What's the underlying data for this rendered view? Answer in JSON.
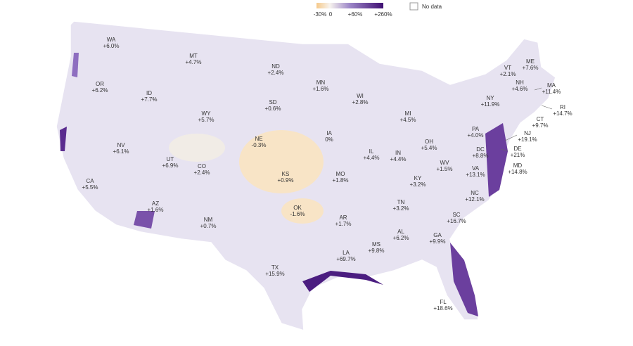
{
  "legend": {
    "labels": [
      "-30%",
      "0",
      "+60%",
      "+260%"
    ],
    "no_data": "No data"
  },
  "states": [
    {
      "abbr": "WA",
      "change": "+6.0%"
    },
    {
      "abbr": "MT",
      "change": "+4.7%"
    },
    {
      "abbr": "ND",
      "change": "+2.4%"
    },
    {
      "abbr": "OR",
      "change": "+6.2%"
    },
    {
      "abbr": "ID",
      "change": "+7.7%"
    },
    {
      "abbr": "MN",
      "change": "+1.6%"
    },
    {
      "abbr": "WI",
      "change": "+2.8%"
    },
    {
      "abbr": "SD",
      "change": "+0.6%"
    },
    {
      "abbr": "WY",
      "change": "+5.7%"
    },
    {
      "abbr": "MI",
      "change": "+4.5%"
    },
    {
      "abbr": "NY",
      "change": "+11.9%"
    },
    {
      "abbr": "VT",
      "change": "+2.1%"
    },
    {
      "abbr": "ME",
      "change": "+7.6%"
    },
    {
      "abbr": "NH",
      "change": "+4.6%"
    },
    {
      "abbr": "MA",
      "change": "+11.4%"
    },
    {
      "abbr": "RI",
      "change": "+14.7%"
    },
    {
      "abbr": "CT",
      "change": "+9.7%"
    },
    {
      "abbr": "NJ",
      "change": "+19.1%"
    },
    {
      "abbr": "PA",
      "change": "+4.0%"
    },
    {
      "abbr": "OH",
      "change": "+5.4%"
    },
    {
      "abbr": "NE",
      "change": "-0.3%"
    },
    {
      "abbr": "IA",
      "change": "0%"
    },
    {
      "abbr": "NV",
      "change": "+6.1%"
    },
    {
      "abbr": "UT",
      "change": "+6.9%"
    },
    {
      "abbr": "CO",
      "change": "+2.4%"
    },
    {
      "abbr": "IL",
      "change": "+4.4%"
    },
    {
      "abbr": "IN",
      "change": "+4.4%"
    },
    {
      "abbr": "DC",
      "change": "+8.8%"
    },
    {
      "abbr": "DE",
      "change": "+21%"
    },
    {
      "abbr": "MD",
      "change": "+14.8%"
    },
    {
      "abbr": "WV",
      "change": "+1.5%"
    },
    {
      "abbr": "VA",
      "change": "+13.1%"
    },
    {
      "abbr": "KS",
      "change": "+0.9%"
    },
    {
      "abbr": "MO",
      "change": "+1.8%"
    },
    {
      "abbr": "KY",
      "change": "+3.2%"
    },
    {
      "abbr": "CA",
      "change": "+5.5%"
    },
    {
      "abbr": "NC",
      "change": "+12.1%"
    },
    {
      "abbr": "TN",
      "change": "+3.2%"
    },
    {
      "abbr": "AZ",
      "change": "+1.6%"
    },
    {
      "abbr": "OK",
      "change": "-1.6%"
    },
    {
      "abbr": "NM",
      "change": "+0.7%"
    },
    {
      "abbr": "AR",
      "change": "+1.7%"
    },
    {
      "abbr": "SC",
      "change": "+16.7%"
    },
    {
      "abbr": "AL",
      "change": "+6.2%"
    },
    {
      "abbr": "GA",
      "change": "+9.9%"
    },
    {
      "abbr": "MS",
      "change": "+9.8%"
    },
    {
      "abbr": "LA",
      "change": "+69.7%"
    },
    {
      "abbr": "TX",
      "change": "+15.9%"
    },
    {
      "abbr": "FL",
      "change": "+18.6%"
    }
  ]
}
